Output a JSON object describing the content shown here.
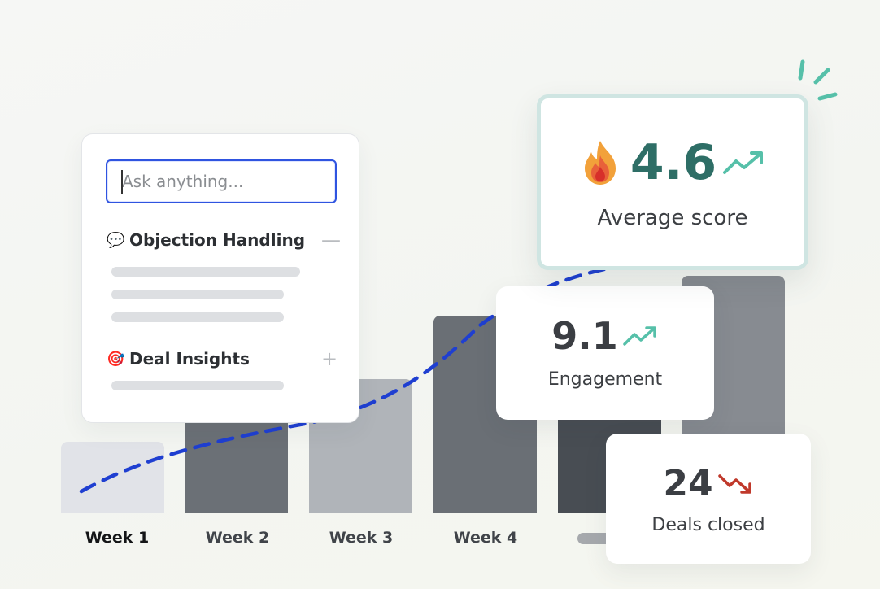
{
  "search": {
    "placeholder": "Ask anything..."
  },
  "sections": [
    {
      "icon": "speech-bubble-icon",
      "emoji": "💬",
      "title": "Objection Handling",
      "toggle": "—",
      "state": "expanded"
    },
    {
      "icon": "target-icon",
      "emoji": "🎯",
      "title": "Deal Insights",
      "toggle": "+",
      "state": "collapsed"
    }
  ],
  "weeks": [
    "Week 1",
    "Week 2",
    "Week 3",
    "Week 4"
  ],
  "metrics": {
    "average": {
      "value": "4.6",
      "label": "Average score",
      "icon": "fire-icon",
      "trend": "up"
    },
    "engagement": {
      "value": "9.1",
      "label": "Engagement",
      "trend": "up"
    },
    "deals": {
      "value": "24",
      "label": "Deals closed",
      "trend": "down"
    }
  },
  "colors": {
    "accent": "#2f54e0",
    "teal": "#2e6e66",
    "trend_up": "#56c0a9",
    "trend_down": "#c0392b"
  }
}
